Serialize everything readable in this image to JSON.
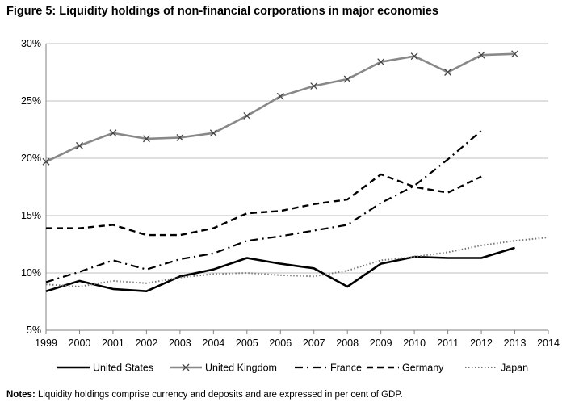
{
  "figure": {
    "title": "Figure 5: Liquidity holdings of non-financial corporations in major economies",
    "notes_label": "Notes:",
    "notes_text": " Liquidity holdings comprise currency and deposits and are expressed in per cent of GDP."
  },
  "chart_data": {
    "type": "line",
    "title": "Figure 5: Liquidity holdings of non-financial corporations in major economies",
    "xlabel": "",
    "ylabel": "",
    "x": [
      "1999",
      "2000",
      "2001",
      "2002",
      "2003",
      "2004",
      "2005",
      "2006",
      "2007",
      "2008",
      "2009",
      "2010",
      "2011",
      "2012",
      "2013",
      "2014"
    ],
    "ylim": [
      5,
      30
    ],
    "yticks": [
      5,
      10,
      15,
      20,
      25,
      30
    ],
    "ytick_labels": [
      "5%",
      "10%",
      "15%",
      "20%",
      "25%",
      "30%"
    ],
    "grid": "horizontal",
    "legend_position": "bottom",
    "series": [
      {
        "name": "United States",
        "color": "#000000",
        "style": "solid",
        "values": [
          8.4,
          9.3,
          8.6,
          8.4,
          9.7,
          10.3,
          11.3,
          10.8,
          10.4,
          8.8,
          10.8,
          11.4,
          11.3,
          11.3,
          12.2,
          null
        ]
      },
      {
        "name": "United Kingdom",
        "color": "#888888",
        "style": "solid-x-marker",
        "values": [
          19.7,
          21.1,
          22.2,
          21.7,
          21.8,
          22.2,
          23.7,
          25.4,
          26.3,
          26.9,
          28.4,
          28.9,
          27.5,
          29.0,
          29.1,
          null
        ]
      },
      {
        "name": "France",
        "color": "#000000",
        "style": "dash-dot",
        "values": [
          9.2,
          10.1,
          11.1,
          10.3,
          11.2,
          11.7,
          12.8,
          13.2,
          13.7,
          14.2,
          16.1,
          17.6,
          19.9,
          22.4,
          null,
          null
        ]
      },
      {
        "name": "Germany",
        "color": "#000000",
        "style": "dashed",
        "values": [
          13.9,
          13.9,
          14.2,
          13.3,
          13.3,
          13.9,
          15.2,
          15.4,
          16.0,
          16.4,
          18.6,
          17.5,
          17.0,
          18.4,
          null,
          null
        ]
      },
      {
        "name": "Japan",
        "color": "#666666",
        "style": "dotted",
        "values": [
          9.0,
          8.8,
          9.3,
          9.1,
          9.6,
          9.9,
          10.0,
          9.8,
          9.7,
          10.2,
          11.1,
          11.4,
          11.8,
          12.4,
          12.8,
          13.1
        ]
      }
    ]
  }
}
